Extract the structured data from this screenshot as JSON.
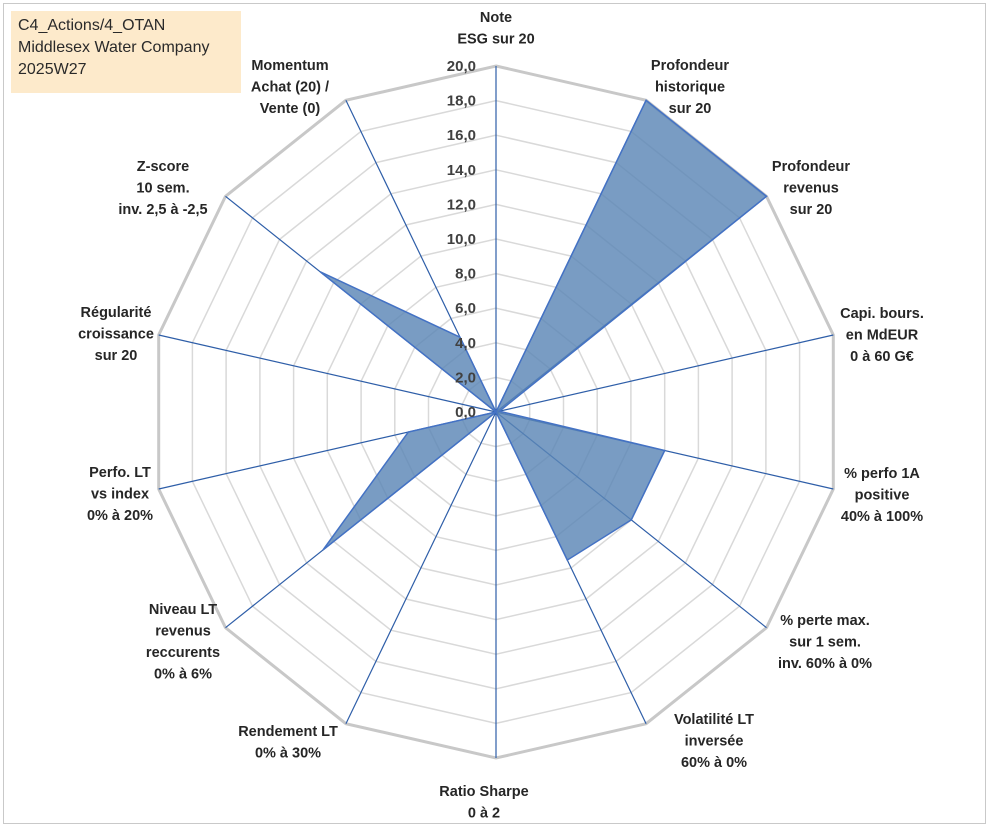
{
  "header": {
    "lines": [
      "C4_Actions/4_OTAN",
      "Middlesex Water Company",
      "2025W27"
    ]
  },
  "chart_data": {
    "type": "radar",
    "rmin": 0,
    "rmax": 20,
    "tick_step": 2,
    "tick_labels": [
      "0,0",
      "2,0",
      "4,0",
      "6,0",
      "8,0",
      "10,0",
      "12,0",
      "14,0",
      "16,0",
      "18,0",
      "20,0"
    ],
    "axes": [
      {
        "label": [
          "Note",
          "ESG sur 20"
        ],
        "value": 0
      },
      {
        "label": [
          "Profondeur",
          "historique",
          "sur 20"
        ],
        "value": 20
      },
      {
        "label": [
          "Profondeur",
          "revenus",
          "sur 20"
        ],
        "value": 20
      },
      {
        "label": [
          "Capi. bours.",
          "en MdEUR",
          "0 à 60 G€"
        ],
        "value": 0.2
      },
      {
        "label": [
          "% perfo 1A",
          "positive",
          "40% à 100%"
        ],
        "value": 10
      },
      {
        "label": [
          "% perte max.",
          "sur 1 sem.",
          "inv. 60% à 0%"
        ],
        "value": 10
      },
      {
        "label": [
          "Volatilité LT",
          "inversée",
          "60% à 0%"
        ],
        "value": 9.5
      },
      {
        "label": [
          "Ratio Sharpe",
          "0 à 2"
        ],
        "value": 0
      },
      {
        "label": [
          "Rendement LT",
          "0% à 30%"
        ],
        "value": 0
      },
      {
        "label": [
          "Niveau LT",
          "revenus",
          "reccurents",
          "0% à 6%"
        ],
        "value": 12.8
      },
      {
        "label": [
          "Perfo. LT",
          "vs index",
          "0% à 20%"
        ],
        "value": 5.2
      },
      {
        "label": [
          "Régularité",
          "croissance",
          "sur 20"
        ],
        "value": 0
      },
      {
        "label": [
          "Z-score",
          "10 sem.",
          "inv. 2,5 à -2,5"
        ],
        "value": 13
      },
      {
        "label": [
          "Momentum",
          "Achat (20) /",
          "Vente (0)"
        ],
        "value": 4.8
      }
    ],
    "colors": {
      "fill": "#5b86b6",
      "fill_opacity": 0.82,
      "stroke": "#4472c4",
      "grid_outer": "#c8c8c8",
      "grid_inner": "#d9d9d9",
      "spoke": "#2e5ea8"
    },
    "grid": true,
    "legend": "none"
  }
}
